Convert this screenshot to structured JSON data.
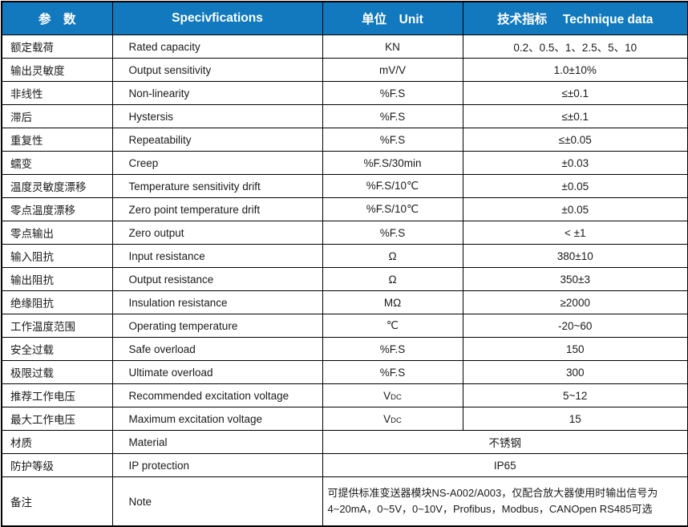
{
  "colors": {
    "header_bg": "#1279BE",
    "header_text": "#FFFFFF",
    "border": "#000000",
    "body_text": "#1A1A1A"
  },
  "table": {
    "headers": [
      "参　数",
      "Specivfications",
      "单位　Unit",
      "技术指标　 Technique data"
    ],
    "rows": [
      {
        "param": "额定载荷",
        "spec": "Rated capacity",
        "unit": "KN",
        "value": "0.2、0.5、1、2.5、5、10"
      },
      {
        "param": "输出灵敏度",
        "spec": "Output sensitivity",
        "unit": "mV/V",
        "value": "1.0±10%"
      },
      {
        "param": "非线性",
        "spec": "Non-linearity",
        "unit": "%F.S",
        "value": "≤±0.1"
      },
      {
        "param": "滞后",
        "spec": "Hystersis",
        "unit": "%F.S",
        "value": "≤±0.1"
      },
      {
        "param": "重复性",
        "spec": "Repeatability",
        "unit": "%F.S",
        "value": "≤±0.05"
      },
      {
        "param": "蠕变",
        "spec": "Creep",
        "unit": "%F.S/30min",
        "value": "±0.03"
      },
      {
        "param": "温度灵敏度漂移",
        "spec": "Temperature sensitivity drift",
        "unit": "%F.S/10℃",
        "value": "±0.05"
      },
      {
        "param": "零点温度漂移",
        "spec": "Zero point temperature drift",
        "unit": "%F.S/10℃",
        "value": "±0.05"
      },
      {
        "param": "零点输出",
        "spec": "Zero output",
        "unit": "%F.S",
        "value": "< ±1"
      },
      {
        "param": "输入阻抗",
        "spec": "Input resistance",
        "unit": "Ω",
        "value": "380±10"
      },
      {
        "param": "输出阻抗",
        "spec": "Output resistance",
        "unit": "Ω",
        "value": "350±3"
      },
      {
        "param": "绝缘阻抗",
        "spec": "Insulation resistance",
        "unit": "MΩ",
        "value": "≥2000"
      },
      {
        "param": "工作温度范围",
        "spec": "Operating temperature",
        "unit": "℃",
        "value": "-20~60"
      },
      {
        "param": "安全过载",
        "spec": "Safe overload",
        "unit": "%F.S",
        "value": "150"
      },
      {
        "param": "极限过载",
        "spec": "Ultimate overload",
        "unit": "%F.S",
        "value": "300"
      },
      {
        "param": "推荐工作电压",
        "spec": "Recommended excitation voltage",
        "unit": "V",
        "unit_small": "DC",
        "value": "5~12"
      },
      {
        "param": "最大工作电压",
        "spec": "Maximum excitation voltage",
        "unit": "V",
        "unit_small": "DC",
        "value": "15"
      },
      {
        "param": "材质",
        "spec": "Material",
        "merged": true,
        "value": "不锈钢"
      },
      {
        "param": "防护等级",
        "spec": "IP protection",
        "merged": true,
        "value": "IP65"
      },
      {
        "param": "备注",
        "spec": "Note",
        "merged": true,
        "align": "left",
        "tall": true,
        "value": "可提供标准变送器模块NS-A002/A003，仅配合放大器使用时输出信号为\n4~20mA，0~5V，0~10V，Profibus，Modbus，CANOpen RS485可选"
      }
    ]
  }
}
